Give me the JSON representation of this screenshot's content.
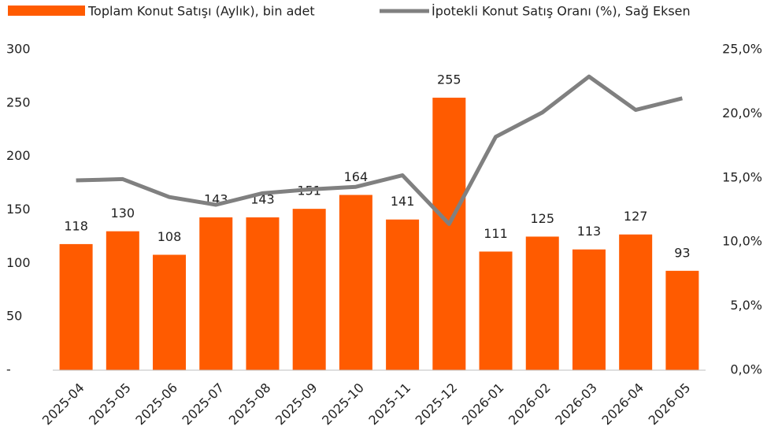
{
  "chart_data": {
    "type": "bar_line",
    "categories": [
      "2025-04",
      "2025-05",
      "2025-06",
      "2025-07",
      "2025-08",
      "2025-09",
      "2025-10",
      "2025-11",
      "2025-12",
      "2026-01",
      "2026-02",
      "2026-03",
      "2026-04",
      "2026-05"
    ],
    "series": [
      {
        "name": "Toplam Konut Satışı (Aylık), bin adet",
        "type": "bar",
        "color": "#ff5b00",
        "values": [
          118,
          130,
          108,
          143,
          143,
          151,
          164,
          141,
          255,
          111,
          125,
          113,
          127,
          93
        ]
      },
      {
        "name": "İpotekli Konut Satış Oranı (%), Sağ Eksen",
        "type": "line",
        "color": "#808080",
        "axis": "y2",
        "values": [
          14.8,
          14.9,
          13.5,
          12.9,
          13.8,
          14.1,
          14.3,
          15.2,
          11.4,
          18.2,
          20.1,
          22.9,
          20.3,
          21.2
        ]
      }
    ],
    "ylim": [
      0,
      300
    ],
    "yticks": [
      {
        "value": 0,
        "label": "-"
      },
      50,
      100,
      150,
      200,
      250,
      300
    ],
    "y2lim": [
      0,
      25
    ],
    "y2ticks": [
      {
        "value": 0,
        "label": "0,0%"
      },
      {
        "value": 5,
        "label": "5,0%"
      },
      {
        "value": 10,
        "label": "10,0%"
      },
      {
        "value": 15,
        "label": "15,0%"
      },
      {
        "value": 20,
        "label": "20,0%"
      },
      {
        "value": 25,
        "label": "25,0%"
      }
    ]
  }
}
